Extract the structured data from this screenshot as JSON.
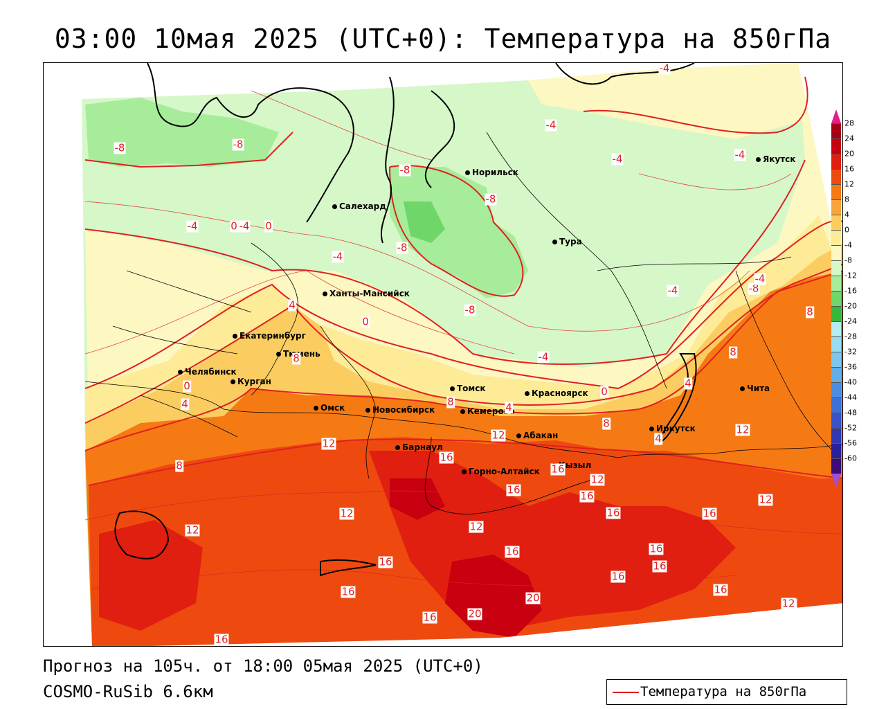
{
  "title": "03:00 10мая 2025 (UTC+0): Температура на 850гПа",
  "footer": {
    "forecast": "Прогноз на 105ч. от 18:00 05мая 2025 (UTC+0)",
    "model": "COSMO-RuSib 6.6км"
  },
  "legend": {
    "label": "Температура на 850гПа",
    "line_color": "#e02020"
  },
  "colorbar": {
    "ticks": [
      "28",
      "24",
      "20",
      "16",
      "12",
      "8",
      "4",
      "0",
      "-4",
      "-8",
      "-12",
      "-16",
      "-20",
      "-24",
      "-28",
      "-32",
      "-36",
      "-40",
      "-44",
      "-48",
      "-52",
      "-56",
      "-60"
    ],
    "colors": [
      "#a50015",
      "#c80010",
      "#e01f10",
      "#ee4a10",
      "#f67a14",
      "#f9a43a",
      "#fbcd60",
      "#fdeb98",
      "#fdf7c2",
      "#d6f7c8",
      "#a6ec9a",
      "#6fd66a",
      "#38b83a",
      "#b4ecf0",
      "#98dcf0",
      "#7cc6ee",
      "#60aeea",
      "#4a8ee2",
      "#3e70d8",
      "#3a54c8",
      "#3238b4",
      "#2a2098",
      "#3a0d78"
    ],
    "top_arrow_color": "#e0208a",
    "bottom_arrow_color": "#a050d0"
  },
  "cities": [
    {
      "name": "Якутск"
    },
    {
      "name": "Норильск"
    },
    {
      "name": "Салехард"
    },
    {
      "name": "Тура"
    },
    {
      "name": "Ханты-Мансийск"
    },
    {
      "name": "Екатеринбург"
    },
    {
      "name": "Тюмень"
    },
    {
      "name": "Челябинск"
    },
    {
      "name": "Курган"
    },
    {
      "name": "Томск"
    },
    {
      "name": "Красноярск"
    },
    {
      "name": "Омск"
    },
    {
      "name": "Новосибирск"
    },
    {
      "name": "Кемерово"
    },
    {
      "name": "Абакан"
    },
    {
      "name": "Иркутск"
    },
    {
      "name": "Барнаул"
    },
    {
      "name": "Горно-Алтайск"
    },
    {
      "name": "Кызыл"
    },
    {
      "name": "Чита"
    }
  ],
  "contour_labels": [
    "-4",
    "-4",
    "-4",
    "-4",
    "-8",
    "-8",
    "-8",
    "-8",
    "-8",
    "-8",
    "-4",
    "-4",
    "0",
    "-4",
    "4",
    "0",
    "-4",
    "-8",
    "-4",
    "0",
    "0",
    "4",
    "8",
    "4",
    "0",
    "-4",
    "4",
    "4",
    "8",
    "8",
    "8",
    "12",
    "12",
    "8",
    "8",
    "12",
    "12",
    "16",
    "16",
    "12",
    "12",
    "16",
    "12",
    "12",
    "12",
    "16",
    "16",
    "16",
    "16",
    "16",
    "16",
    "16",
    "16",
    "16",
    "16",
    "20",
    "20",
    "16",
    "16",
    "12"
  ]
}
